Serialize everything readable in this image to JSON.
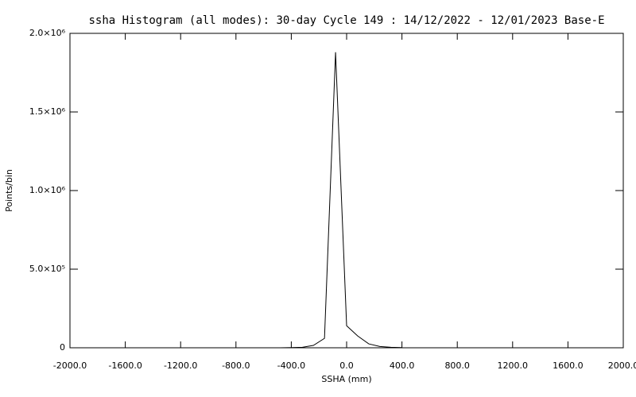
{
  "chart_data": {
    "type": "line",
    "title": "ssha Histogram (all modes): 30-day Cycle 149 : 14/12/2022 - 12/01/2023 Base-E",
    "x_label": "SSHA (mm)",
    "y_label": "Points/bin",
    "x": [
      -480,
      -400,
      -320,
      -240,
      -160,
      -80,
      0,
      80,
      160,
      240,
      320,
      400
    ],
    "series": [
      {
        "name": "ssha",
        "color": "#000000",
        "values": [
          0,
          1000,
          3000,
          15000,
          60000,
          1880000,
          140000,
          75000,
          25000,
          8000,
          3000,
          1000
        ]
      }
    ],
    "xlim": [
      -2000,
      2000
    ],
    "xticks": [
      {
        "value": -2000,
        "label": "-2000.0"
      },
      {
        "value": -1600,
        "label": "-1600.0"
      },
      {
        "value": -1200,
        "label": "-1200.0"
      },
      {
        "value": -800,
        "label": "-800.0"
      },
      {
        "value": -400,
        "label": "-400.0"
      },
      {
        "value": 0,
        "label": "0.0"
      },
      {
        "value": 400,
        "label": "400.0"
      },
      {
        "value": 800,
        "label": "800.0"
      },
      {
        "value": 1200,
        "label": "1200.0"
      },
      {
        "value": 1600,
        "label": "1600.0"
      },
      {
        "value": 2000,
        "label": "2000.0"
      }
    ],
    "ylim": [
      0,
      2000000
    ],
    "yticks": [
      0,
      {
        "value": 500000,
        "label": "5.0×10⁵"
      },
      {
        "value": 1000000,
        "label": "1.0×10⁶"
      },
      {
        "value": 1500000,
        "label": "1.5×10⁶"
      },
      {
        "value": 2000000,
        "label": "2.0×10⁶"
      }
    ],
    "grid": false
  }
}
